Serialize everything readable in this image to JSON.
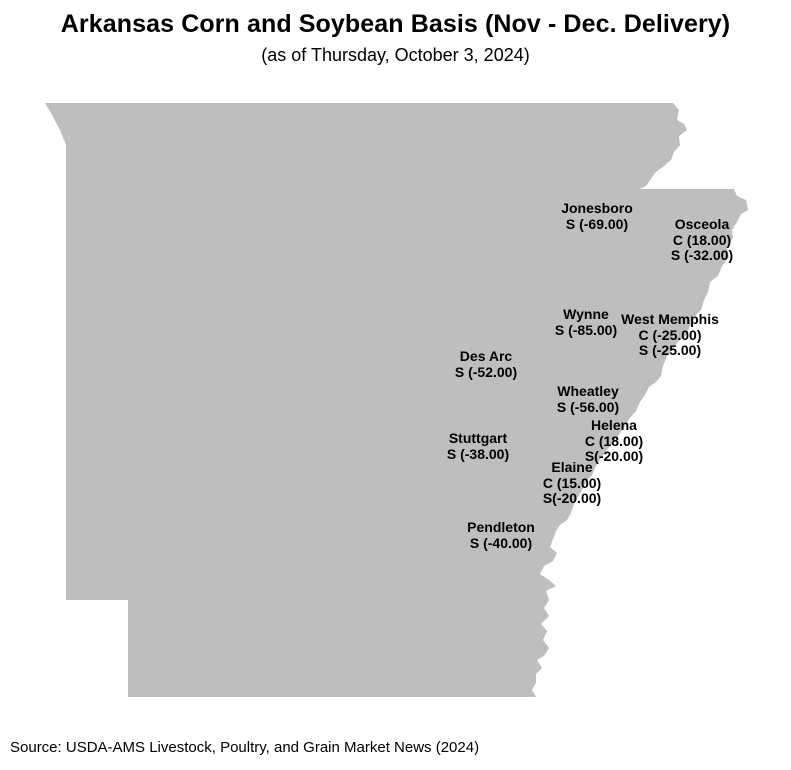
{
  "title": "Arkansas Corn and Soybean Basis (Nov - Dec. Delivery)",
  "subtitle": "(as of Thursday, October 3, 2024)",
  "map": {
    "region": "Arkansas",
    "fill_color": "#bebebe",
    "locations": [
      {
        "id": "jonesboro",
        "name": "Jonesboro",
        "lines": [
          "S (-69.00)"
        ]
      },
      {
        "id": "osceola",
        "name": "Osceola",
        "lines": [
          "C (18.00)",
          "S (-32.00)"
        ]
      },
      {
        "id": "wynne",
        "name": "Wynne",
        "lines": [
          "S (-85.00)"
        ]
      },
      {
        "id": "west-memphis",
        "name": "West Memphis",
        "lines": [
          "C (-25.00)",
          "S (-25.00)"
        ]
      },
      {
        "id": "des-arc",
        "name": "Des Arc",
        "lines": [
          "S (-52.00)"
        ]
      },
      {
        "id": "wheatley",
        "name": "Wheatley",
        "lines": [
          "S (-56.00)"
        ]
      },
      {
        "id": "helena",
        "name": "Helena",
        "lines": [
          "C (18.00)",
          "S(-20.00)"
        ]
      },
      {
        "id": "stuttgart",
        "name": "Stuttgart",
        "lines": [
          "S (-38.00)"
        ]
      },
      {
        "id": "elaine",
        "name": "Elaine",
        "lines": [
          "C (15.00)",
          "S(-20.00)"
        ]
      },
      {
        "id": "pendleton",
        "name": "Pendleton",
        "lines": [
          "S (-40.00)"
        ]
      }
    ]
  },
  "source": "Source: USDA-AMS Livestock, Poultry, and Grain Market News (2024)"
}
